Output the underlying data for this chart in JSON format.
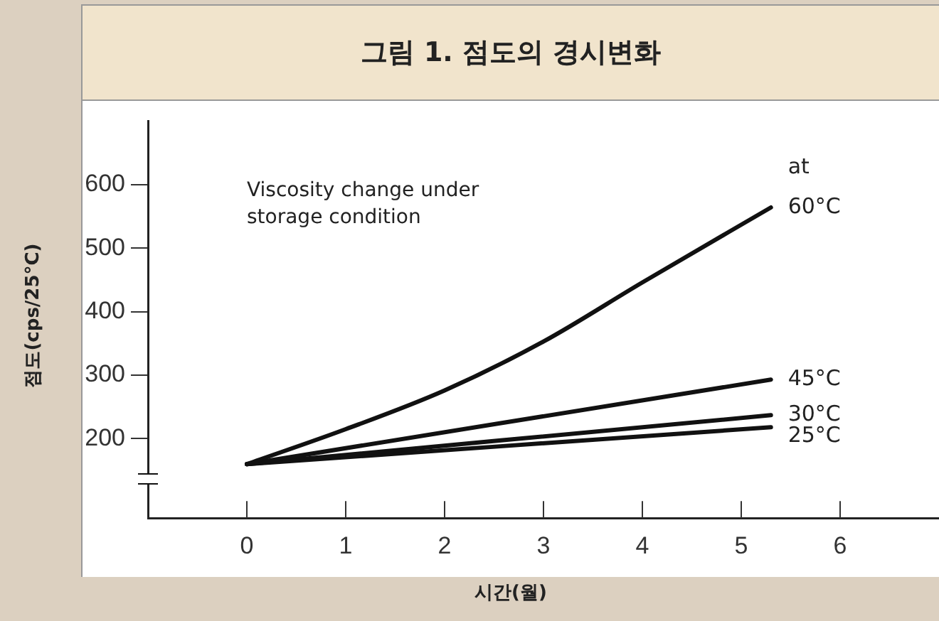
{
  "chart_data": {
    "type": "line",
    "title": "그림 1. 점도의 경시변화",
    "xlabel": "시간(월)",
    "ylabel": "점도(cps/25°C)",
    "annotations": [
      "Viscosity change under storage condition",
      "at"
    ],
    "xlim": [
      -1,
      7
    ],
    "xticks": [
      0,
      1,
      2,
      3,
      4,
      5,
      6
    ],
    "ylim": [
      75,
      700
    ],
    "yticks": [
      200,
      300,
      400,
      500,
      600
    ],
    "marker": "none",
    "line_style": "solid",
    "legend": false,
    "series": [
      {
        "name": "60°C",
        "color": "#111111",
        "x": [
          0,
          1,
          2,
          3,
          4,
          5.3
        ],
        "values": [
          160,
          215,
          276,
          353,
          446,
          564
        ]
      },
      {
        "name": "45°C",
        "color": "#111111",
        "x": [
          0,
          5.3
        ],
        "values": [
          160,
          293
        ]
      },
      {
        "name": "30°C",
        "color": "#111111",
        "x": [
          0,
          5.3
        ],
        "values": [
          160,
          237
        ]
      },
      {
        "name": "25°C",
        "color": "#111111",
        "x": [
          0,
          5.3
        ],
        "values": [
          160,
          218
        ]
      }
    ]
  }
}
